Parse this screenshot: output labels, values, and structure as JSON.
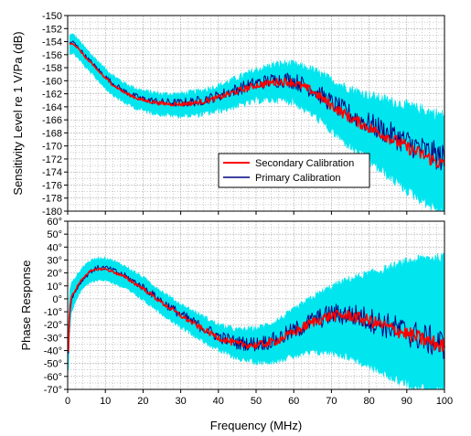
{
  "colors": {
    "secondary": "#ff0000",
    "primary": "#000080",
    "uncertainty": "#00e5ee",
    "grid": "#9a9a9a",
    "axis": "#000000"
  },
  "chart_data": [
    {
      "type": "line",
      "xlabel": "",
      "ylabel": "Sensitivity Level re 1 V/Pa (dB)",
      "xlim": [
        0,
        100
      ],
      "ylim": [
        -180,
        -150
      ],
      "x_ticks": [
        "0",
        "10",
        "20",
        "30",
        "40",
        "50",
        "60",
        "70",
        "80",
        "90",
        "100"
      ],
      "y_ticks": [
        "-150",
        "-152",
        "-154",
        "-156",
        "-158",
        "-160",
        "-162",
        "-164",
        "-166",
        "-168",
        "-170",
        "-172",
        "-174",
        "-176",
        "-178",
        "-180"
      ],
      "grid": true,
      "legend": {
        "placement": "center-right",
        "entries": [
          "Secondary Calibration",
          "Primary Calibration"
        ]
      },
      "x": [
        0.5,
        1,
        1.5,
        2,
        3,
        4,
        5,
        6,
        8,
        10,
        12,
        15,
        18,
        20,
        25,
        30,
        35,
        40,
        45,
        50,
        55,
        58,
        60,
        65,
        70,
        75,
        80,
        85,
        90,
        95,
        100
      ],
      "series": [
        {
          "name": "Secondary Calibration",
          "color": "#ff0000",
          "values": [
            -154.5,
            -154.2,
            -154.3,
            -154.6,
            -155.2,
            -155.9,
            -156.6,
            -157.2,
            -158.4,
            -159.6,
            -160.6,
            -161.8,
            -162.6,
            -163.0,
            -163.5,
            -163.6,
            -163.3,
            -162.6,
            -161.6,
            -160.7,
            -160.2,
            -160.1,
            -160.3,
            -161.6,
            -163.8,
            -165.7,
            -167.2,
            -168.6,
            -170.2,
            -171.6,
            -173.0
          ],
          "jitter": 0.45
        },
        {
          "name": "Primary Calibration",
          "color": "#000080",
          "values": [
            -154.3,
            -154.0,
            -154.1,
            -154.4,
            -155.0,
            -155.7,
            -156.4,
            -157.0,
            -158.2,
            -159.4,
            -160.4,
            -161.6,
            -162.4,
            -162.8,
            -163.3,
            -163.4,
            -163.1,
            -162.3,
            -161.3,
            -160.4,
            -159.9,
            -159.8,
            -160.0,
            -161.3,
            -163.4,
            -165.2,
            -166.6,
            -168.0,
            -169.4,
            -170.8,
            -172.0
          ],
          "jitter": 0.9
        }
      ],
      "uncertainty_band": {
        "lower": [
          -155.8,
          -155.6,
          -155.7,
          -156.0,
          -156.6,
          -157.3,
          -158.0,
          -158.6,
          -159.8,
          -161.0,
          -162.0,
          -163.2,
          -164.0,
          -164.4,
          -165.0,
          -165.2,
          -165.0,
          -164.4,
          -163.6,
          -162.8,
          -162.6,
          -162.7,
          -163.0,
          -164.8,
          -167.4,
          -169.8,
          -172.0,
          -174.2,
          -176.4,
          -178.2,
          -180.0
        ],
        "upper": [
          -153.2,
          -152.9,
          -153.0,
          -153.3,
          -153.9,
          -154.6,
          -155.3,
          -155.9,
          -157.1,
          -158.3,
          -159.3,
          -160.5,
          -161.3,
          -161.7,
          -162.2,
          -162.2,
          -161.8,
          -161.0,
          -159.8,
          -158.6,
          -157.8,
          -157.6,
          -157.8,
          -158.6,
          -160.2,
          -161.6,
          -162.6,
          -163.4,
          -164.2,
          -165.0,
          -165.8
        ]
      }
    },
    {
      "type": "line",
      "xlabel": "Frequency (MHz)",
      "ylabel": "Phase Response",
      "xlim": [
        0,
        100
      ],
      "ylim": [
        -70,
        60
      ],
      "x_ticks": [
        "0",
        "10",
        "20",
        "30",
        "40",
        "50",
        "60",
        "70",
        "80",
        "90",
        "100"
      ],
      "y_ticks": [
        "60°",
        "50°",
        "40°",
        "30°",
        "20°",
        "10°",
        "0°",
        "-10°",
        "-20°",
        "-30°",
        "-40°",
        "-50°",
        "-60°",
        "-70°"
      ],
      "grid": true,
      "x": [
        0.2,
        0.5,
        1,
        1.5,
        2,
        3,
        4,
        5,
        6,
        8,
        10,
        12,
        15,
        20,
        25,
        30,
        35,
        40,
        45,
        50,
        55,
        60,
        65,
        70,
        75,
        80,
        85,
        90,
        95,
        100
      ],
      "series": [
        {
          "name": "Secondary Calibration",
          "color": "#ff0000",
          "values": [
            -40,
            -10,
            2,
            4,
            6,
            12,
            16,
            19,
            21,
            23,
            23,
            21,
            17,
            8,
            -3,
            -13,
            -22,
            -30,
            -35,
            -36,
            -33,
            -26,
            -18,
            -13,
            -13,
            -17,
            -22,
            -27,
            -32,
            -37
          ],
          "jitter": 2.5
        },
        {
          "name": "Primary Calibration",
          "color": "#000080",
          "values": [
            -42,
            -12,
            0,
            3,
            5,
            11,
            15,
            18,
            21,
            24,
            24,
            22,
            18,
            9,
            -2,
            -12,
            -21,
            -29,
            -34,
            -35,
            -32,
            -25,
            -17,
            -12,
            -12,
            -16,
            -21,
            -26,
            -31,
            -36
          ],
          "jitter": 5
        }
      ],
      "uncertainty_band": {
        "lower": [
          -55,
          -25,
          -10,
          -6,
          -2,
          4,
          8,
          11,
          13,
          15,
          15,
          13,
          9,
          0,
          -11,
          -21,
          -30,
          -39,
          -45,
          -48,
          -47,
          -43,
          -40,
          -40,
          -44,
          -51,
          -58,
          -64,
          -68,
          -70
        ],
        "upper": [
          -25,
          5,
          12,
          14,
          16,
          20,
          24,
          27,
          29,
          31,
          31,
          29,
          25,
          16,
          5,
          -5,
          -13,
          -21,
          -25,
          -24,
          -19,
          -10,
          0,
          8,
          14,
          18,
          22,
          27,
          30,
          30
        ]
      }
    }
  ]
}
